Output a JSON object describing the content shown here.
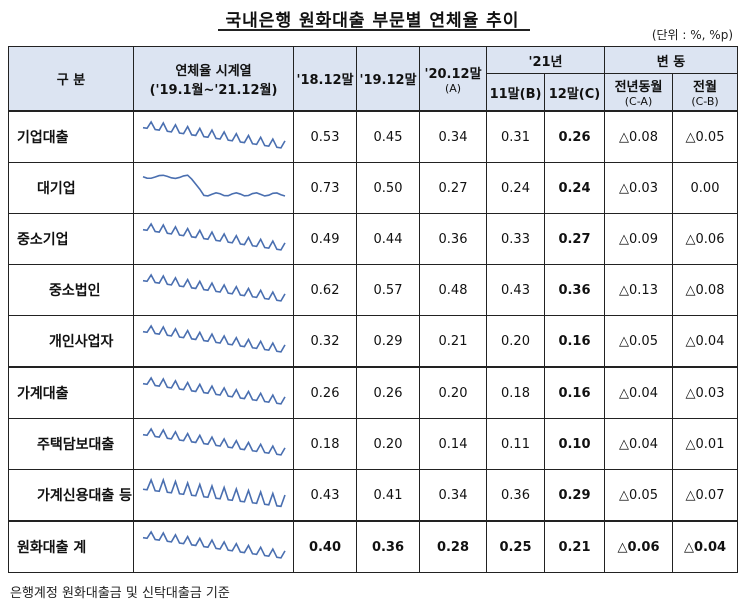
{
  "title": "국내은행 원화대출 부문별 연체율 추이",
  "unit": "(단위 : %, %p)",
  "header": {
    "category": "구  분",
    "series_label": "연체율 시계열",
    "series_range": "('19.1월~'21.12월)",
    "y18": "'18.12말",
    "y19": "'19.12말",
    "y20": "'20.12말",
    "y20_sub": "(A)",
    "y21": "'21년",
    "m11": "11말(B)",
    "m12": "12말(C)",
    "change": "변  동",
    "yoy": "전년동월",
    "yoy_sub": "(C-A)",
    "mom": "전월",
    "mom_sub": "(C-B)"
  },
  "rows": [
    {
      "label": "기업대출",
      "v18": "0.53",
      "v19": "0.45",
      "v20": "0.34",
      "v11": "0.31",
      "v12": "0.26",
      "yoy": "△0.08",
      "mom": "△0.05"
    },
    {
      "label": "대기업",
      "v18": "0.73",
      "v19": "0.50",
      "v20": "0.27",
      "v11": "0.24",
      "v12": "0.24",
      "yoy": "△0.03",
      "mom": "0.00"
    },
    {
      "label": "중소기업",
      "v18": "0.49",
      "v19": "0.44",
      "v20": "0.36",
      "v11": "0.33",
      "v12": "0.27",
      "yoy": "△0.09",
      "mom": "△0.06"
    },
    {
      "label": "중소법인",
      "v18": "0.62",
      "v19": "0.57",
      "v20": "0.48",
      "v11": "0.43",
      "v12": "0.36",
      "yoy": "△0.13",
      "mom": "△0.08"
    },
    {
      "label": "개인사업자",
      "v18": "0.32",
      "v19": "0.29",
      "v20": "0.21",
      "v11": "0.20",
      "v12": "0.16",
      "yoy": "△0.05",
      "mom": "△0.04"
    },
    {
      "label": "가계대출",
      "v18": "0.26",
      "v19": "0.26",
      "v20": "0.20",
      "v11": "0.18",
      "v12": "0.16",
      "yoy": "△0.04",
      "mom": "△0.03"
    },
    {
      "label": "주택담보대출",
      "v18": "0.18",
      "v19": "0.20",
      "v20": "0.14",
      "v11": "0.11",
      "v12": "0.10",
      "yoy": "△0.04",
      "mom": "△0.01"
    },
    {
      "label": "가계신용대출 등",
      "v18": "0.43",
      "v19": "0.41",
      "v20": "0.34",
      "v11": "0.36",
      "v12": "0.29",
      "yoy": "△0.05",
      "mom": "△0.07"
    },
    {
      "label": "원화대출 계",
      "v18": "0.40",
      "v19": "0.36",
      "v20": "0.28",
      "v11": "0.25",
      "v12": "0.21",
      "yoy": "△0.06",
      "mom": "△0.04"
    }
  ],
  "sparkline_color": "#4a6fb0",
  "footnote": "은행계정 원화대출금 및 신탁대출금 기준"
}
